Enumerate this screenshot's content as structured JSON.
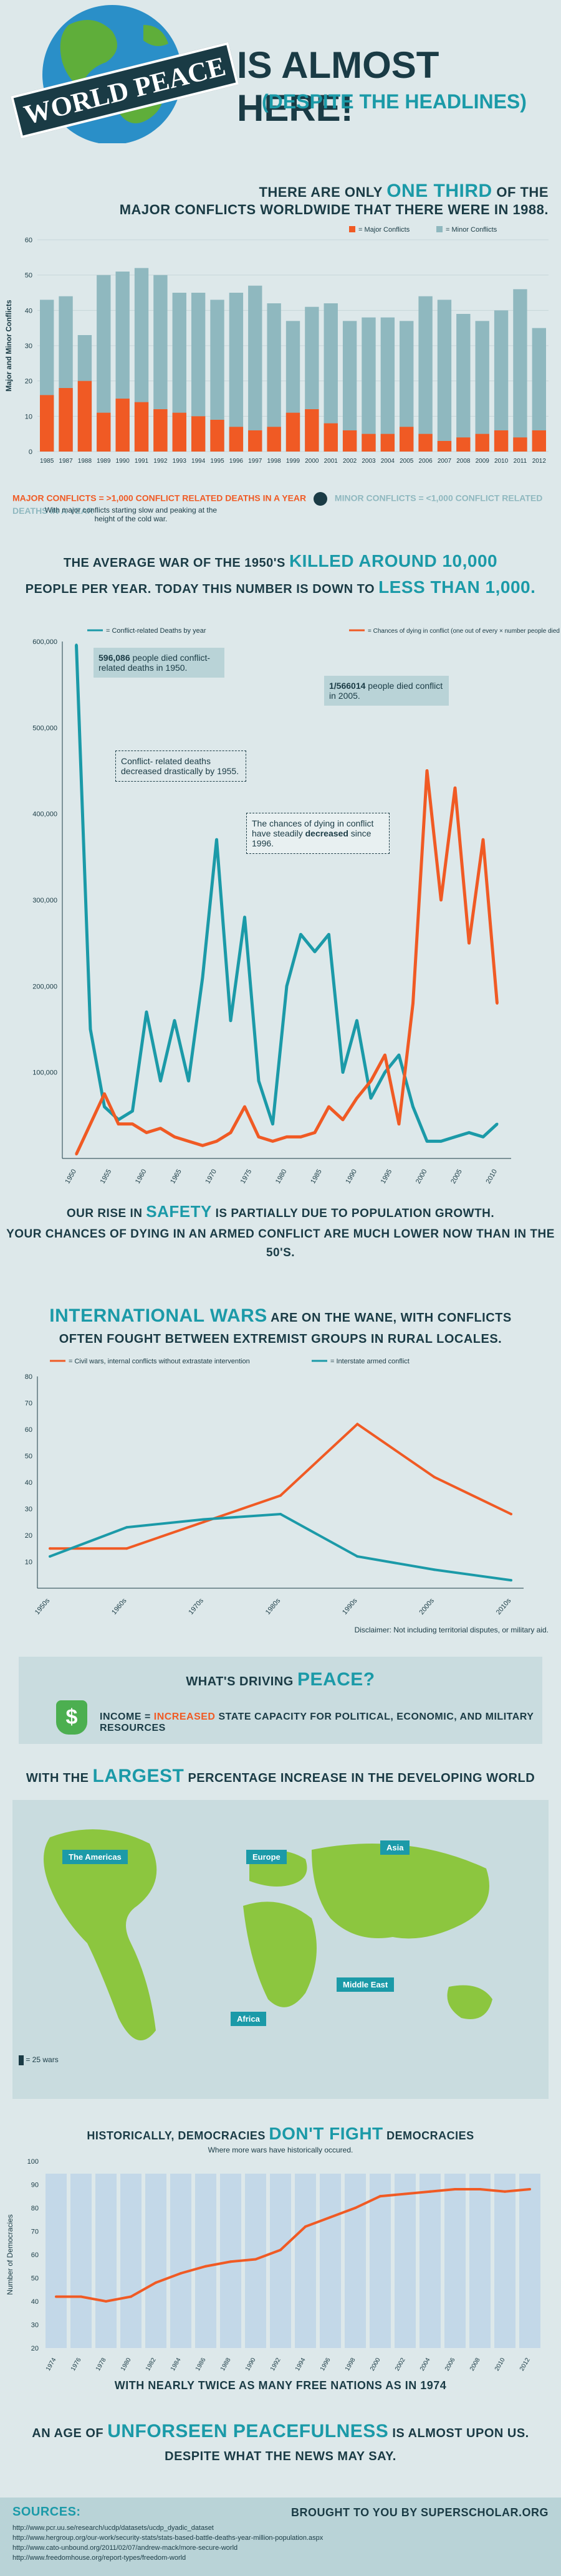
{
  "header": {
    "title_badge": "WORLD PEACE",
    "title_main": "IS ALMOST HERE!",
    "subtitle": "(DESPITE THE HEADLINES)"
  },
  "s1": {
    "line1_pre": "THERE ARE ONLY",
    "line1_em": "ONE THIRD",
    "line1_post": "OF THE",
    "line2": "MAJOR CONFLICTS WORLDWIDE THAT THERE WERE IN 1988.",
    "footer_major": "MAJOR CONFLICTS = >1,000 CONFLICT RELATED DEATHS IN A YEAR",
    "footer_minor": "MINOR CONFLICTS = <1,000 CONFLICT RELATED DEATHS IN A YEAR",
    "footer_note": "With major conflicts starting slow and peaking at the height of the cold war."
  },
  "s2": {
    "line1_pre": "THE AVERAGE WAR OF THE 1950'S",
    "line1_em": "KILLED AROUND 10,000",
    "line2_pre": "PEOPLE PER YEAR. TODAY THIS NUMBER IS DOWN TO",
    "line2_em": "LESS THAN 1,000.",
    "callout1_bold": "596,086",
    "callout1_rest": "people died conflict- related deaths in 1950.",
    "callout2_bold": "1/566014",
    "callout2_rest": "people died conflict in 2005.",
    "callout3": "Conflict- related deaths decreased drastically by 1955.",
    "callout4_pre": "The chances of dying in conflict have steadily",
    "callout4_bold": "decreased",
    "callout4_post": "since 1996.",
    "bottom1_pre": "OUR RISE IN",
    "bottom1_em": "SAFETY",
    "bottom1_post": "IS PARTIALLY DUE TO POPULATION GROWTH.",
    "bottom2": "YOUR CHANCES OF DYING IN AN ARMED CONFLICT ARE MUCH LOWER NOW THAN IN THE 50'S."
  },
  "s3": {
    "line1_em": "INTERNATIONAL WARS",
    "line1_post": "ARE ON THE WANE, WITH CONFLICTS",
    "line2": "OFTEN FOUGHT BETWEEN EXTREMIST GROUPS IN RURAL LOCALES.",
    "disclaimer": "Disclaimer: Not including territorial disputes, or military aid."
  },
  "s4": {
    "title_pre": "WHAT'S DRIVING",
    "title_em": "PEACE?",
    "body_pre": "INCOME =",
    "body_em": "INCREASED",
    "body_post": "STATE CAPACITY FOR POLITICAL, ECONOMIC, AND MILITARY RESOURCES",
    "dollar": "$"
  },
  "s5": {
    "title_pre": "WITH THE",
    "title_em": "LARGEST",
    "title_post": "PERCENTAGE INCREASE IN THE DEVELOPING WORLD",
    "regions": [
      "The Americas",
      "Europe",
      "Asia",
      "Middle East",
      "Africa"
    ],
    "legend": "= 25 wars"
  },
  "s6": {
    "title_pre": "HISTORICALLY, DEMOCRACIES",
    "title_em": "DON'T FIGHT",
    "title_post": "DEMOCRACIES",
    "subtitle": "Where more wars have historically occured.",
    "bottom": "WITH NEARLY TWICE AS MANY FREE NATIONS AS IN 1974"
  },
  "s7": {
    "line1_pre": "AN AGE OF",
    "line1_em": "UNFORSEEN PEACEFULNESS",
    "line1_post": "IS ALMOST UPON US.",
    "line2": "DESPITE WHAT THE NEWS MAY SAY."
  },
  "footer": {
    "sources_label": "SOURCES:",
    "brought": "BROUGHT TO YOU BY SUPERSCHOLAR.ORG",
    "sources": [
      "http://www.pcr.uu.se/research/ucdp/datasets/ucdp_dyadic_dataset",
      "http://www.hergroup.org/our-work/security-stats/stats-based-battle-deaths-year-million-population.aspx",
      "http://www.cato-unbound.org/2011/02/07/andrew-mack/more-secure-world",
      "http://www.freedomhouse.org/report-types/freedom-world"
    ]
  },
  "colors": {
    "teal": "#1b9aa8",
    "orange": "#f05a24",
    "bar_teal": "#8fb8bf",
    "navy": "#1a3b45",
    "bg": "#dde8ea"
  },
  "chart_data": [
    {
      "type": "bar",
      "title": "",
      "ylabel": "Major and Minor Conflicts",
      "ylim": [
        0,
        60
      ],
      "yticks": [
        "0",
        "10",
        "20",
        "30",
        "40",
        "50",
        "60"
      ],
      "categories": [
        "1985",
        "1987",
        "1988",
        "1989",
        "1990",
        "1991",
        "1992",
        "1993",
        "1994",
        "1995",
        "1996",
        "1997",
        "1998",
        "1999",
        "2000",
        "2001",
        "2002",
        "2003",
        "2004",
        "2005",
        "2006",
        "2007",
        "2008",
        "2009",
        "2010",
        "2011",
        "2012"
      ],
      "legend": [
        "= Major Conflicts",
        "= Minor Conflicts"
      ],
      "series": [
        {
          "name": "= Major Conflicts",
          "values": [
            16,
            18,
            20,
            11,
            15,
            14,
            12,
            11,
            10,
            9,
            7,
            6,
            7,
            11,
            12,
            8,
            6,
            5,
            5,
            7,
            5,
            3,
            4,
            5,
            6,
            4,
            6
          ]
        },
        {
          "name": "= Minor Conflicts",
          "values": [
            43,
            44,
            33,
            50,
            51,
            52,
            50,
            45,
            45,
            43,
            45,
            47,
            42,
            37,
            41,
            42,
            37,
            38,
            38,
            37,
            44,
            43,
            39,
            37,
            40,
            46,
            35
          ]
        }
      ]
    },
    {
      "type": "line",
      "title": "",
      "x": [
        1950,
        1952,
        1954,
        1956,
        1958,
        1960,
        1962,
        1964,
        1966,
        1968,
        1970,
        1972,
        1974,
        1976,
        1978,
        1980,
        1982,
        1984,
        1986,
        1988,
        1990,
        1992,
        1994,
        1996,
        1998,
        2000,
        2002,
        2004,
        2006,
        2008,
        2010
      ],
      "xticks": [
        "1950",
        "1955",
        "1960",
        "1965",
        "1970",
        "1975",
        "1980",
        "1985",
        "1990",
        "1995",
        "2000",
        "2005",
        "2010"
      ],
      "ylim": [
        0,
        600000
      ],
      "yticks": [
        "100,000",
        "200,000",
        "300,000",
        "400,000",
        "500,000",
        "600,000"
      ],
      "series": [
        {
          "name": "= Conflict-related Deaths by year",
          "values": [
            596086,
            150000,
            60000,
            45000,
            55000,
            170000,
            90000,
            160000,
            90000,
            210000,
            370000,
            160000,
            280000,
            90000,
            40000,
            200000,
            260000,
            240000,
            260000,
            100000,
            160000,
            70000,
            100000,
            120000,
            60000,
            20000,
            20000,
            25000,
            30000,
            25000,
            40000
          ]
        },
        {
          "name": "= Chances of dying in conflict (one out of every × number people died in conflict)",
          "values": [
            5000,
            40000,
            75000,
            40000,
            40000,
            30000,
            35000,
            25000,
            20000,
            15000,
            20000,
            30000,
            60000,
            25000,
            20000,
            25000,
            25000,
            30000,
            60000,
            45000,
            70000,
            90000,
            120000,
            40000,
            180000,
            450000,
            300000,
            430000,
            250000,
            370000,
            180000
          ]
        }
      ]
    },
    {
      "type": "line",
      "title": "",
      "categories": [
        "1950s",
        "1960s",
        "1970s",
        "1980s",
        "1990s",
        "2000s",
        "2010s"
      ],
      "ylim": [
        0,
        80
      ],
      "yticks": [
        "10",
        "20",
        "30",
        "40",
        "50",
        "60",
        "70",
        "80"
      ],
      "series": [
        {
          "name": "= Civil wars, internal conflicts without extrastate intervention",
          "values": [
            15,
            15,
            25,
            35,
            62,
            42,
            28
          ]
        },
        {
          "name": "= Interstate armed conflict",
          "values": [
            12,
            23,
            26,
            28,
            12,
            7,
            3
          ]
        }
      ]
    },
    {
      "type": "line",
      "title": "",
      "ylabel": "Number of Democracies",
      "categories": [
        "1974",
        "1976",
        "1978",
        "1980",
        "1982",
        "1984",
        "1986",
        "1988",
        "1990",
        "1992",
        "1994",
        "1996",
        "1998",
        "2000",
        "2002",
        "2004",
        "2006",
        "2008",
        "2010",
        "2012"
      ],
      "ylim": [
        20,
        100
      ],
      "yticks": [
        "20",
        "30",
        "40",
        "50",
        "60",
        "70",
        "80",
        "90",
        "100"
      ],
      "series": [
        {
          "name": "Number of Democracies",
          "values": [
            42,
            42,
            40,
            42,
            48,
            52,
            55,
            57,
            58,
            62,
            72,
            76,
            80,
            85,
            86,
            87,
            88,
            88,
            87,
            88
          ]
        }
      ]
    }
  ]
}
